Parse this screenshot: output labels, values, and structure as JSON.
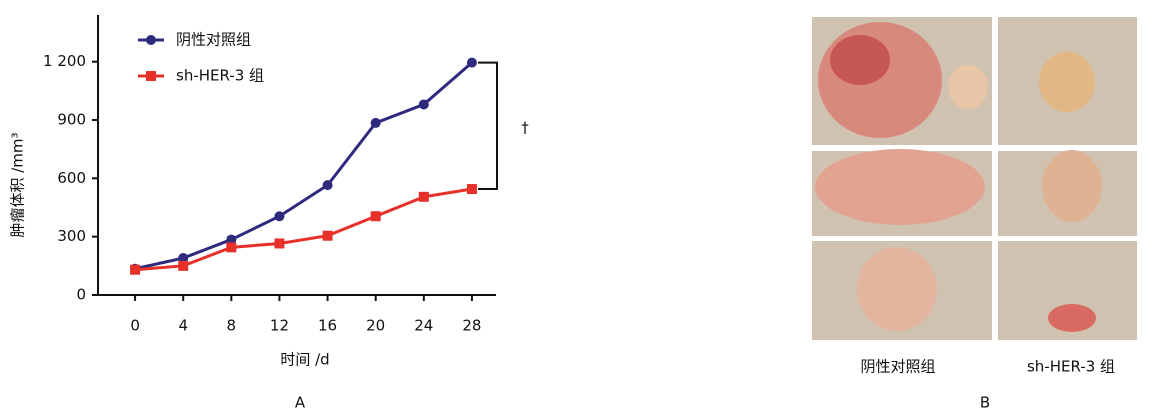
{
  "chart_data": {
    "type": "line",
    "y_label": "肿瘤体积 /mm³",
    "x_label": "时间 /d",
    "panel_label": "A",
    "annotation": "†",
    "x": [
      0,
      4,
      8,
      12,
      16,
      20,
      24,
      28
    ],
    "xlim": [
      -3,
      30
    ],
    "xticks": [
      0,
      4,
      8,
      12,
      16,
      20,
      24,
      28
    ],
    "ylim": [
      0,
      1440
    ],
    "yticks": [
      0,
      300,
      600,
      900,
      {
        "value": 1200,
        "label": "1 200"
      }
    ],
    "legend": "upper left",
    "series": [
      {
        "name": "阴性对照组",
        "color": "#2e2a7e",
        "marker": "circle",
        "values": [
          135,
          190,
          285,
          405,
          565,
          885,
          980,
          1195
        ]
      },
      {
        "name": "sh-HER-3 组",
        "color": "#e8302a",
        "marker": "square",
        "values": [
          130,
          150,
          245,
          265,
          305,
          405,
          505,
          545
        ]
      }
    ]
  },
  "photos": {
    "panel_label": "B",
    "labels": [
      "阴性对照组",
      "sh-HER-3 组"
    ]
  }
}
